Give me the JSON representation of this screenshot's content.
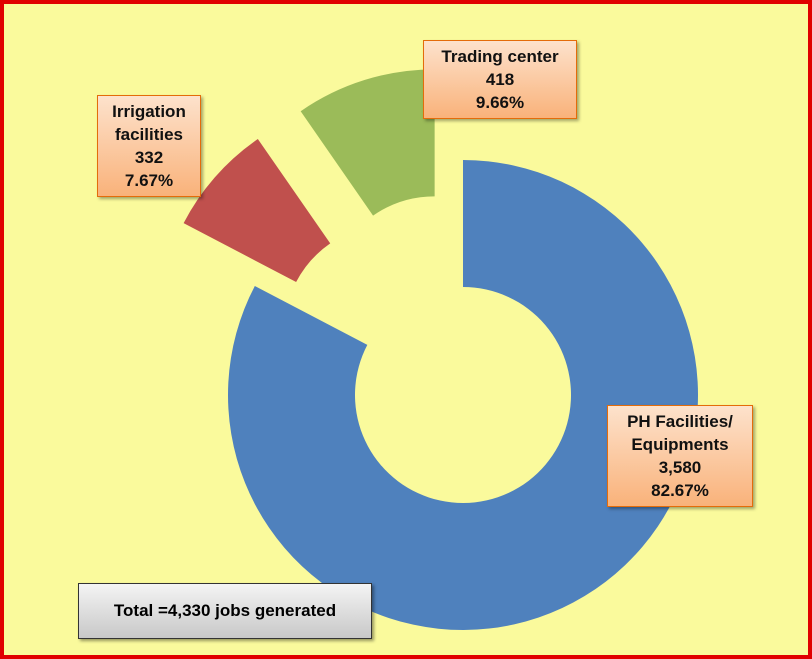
{
  "chart_data": {
    "type": "donut",
    "categories": [
      "PH Facilities/ Equipments",
      "Irrigation facilities",
      "Trading center"
    ],
    "values": [
      3580,
      332,
      418
    ],
    "value_labels": [
      "3,580",
      "332",
      "418"
    ],
    "percentage_labels": [
      "82.67%",
      "7.67%",
      "9.66%"
    ],
    "colors": [
      "#4f81bd",
      "#c0504d",
      "#9bbb59"
    ],
    "exploded": [
      false,
      true,
      true
    ],
    "annotation": "Total =4,330 jobs generated"
  }
}
